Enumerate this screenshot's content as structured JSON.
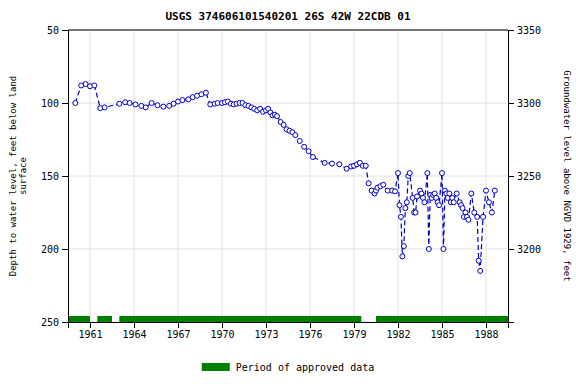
{
  "chart_data": {
    "type": "line",
    "title": "USGS 374606101540201 26S 42W 22CDB 01",
    "ylabel": "Depth to water level, feet below land\nsurface",
    "y2label": "Groundwater level above NGVD 1929, feet",
    "xlim": [
      1959.5,
      1989.5
    ],
    "xticks": [
      1961,
      1964,
      1967,
      1970,
      1973,
      1976,
      1979,
      1982,
      1985,
      1988
    ],
    "ylim": [
      250,
      50
    ],
    "yticks": [
      50,
      100,
      150,
      200,
      250
    ],
    "y2lim": [
      3150,
      3350
    ],
    "y2ticks": [
      3350,
      3300,
      3250,
      3200
    ],
    "grid": true,
    "legend": "bottom",
    "color": "#0000cc",
    "marker": "circle",
    "line_style": "dashed",
    "x": [
      1960.0,
      1960.4,
      1960.7,
      1961.0,
      1961.3,
      1961.7,
      1962.0,
      1963.0,
      1963.4,
      1963.7,
      1964.1,
      1964.5,
      1964.8,
      1965.2,
      1965.6,
      1966.0,
      1966.4,
      1966.7,
      1967.0,
      1967.3,
      1967.7,
      1968.0,
      1968.3,
      1968.6,
      1968.9,
      1969.2,
      1969.5,
      1969.7,
      1970.0,
      1970.2,
      1970.4,
      1970.6,
      1970.8,
      1971.0,
      1971.2,
      1971.4,
      1971.6,
      1971.8,
      1972.0,
      1972.2,
      1972.4,
      1972.6,
      1972.8,
      1973.0,
      1973.15,
      1973.3,
      1973.45,
      1973.6,
      1973.75,
      1974.0,
      1974.2,
      1974.4,
      1974.6,
      1974.8,
      1975.0,
      1975.3,
      1975.6,
      1975.9,
      1976.2,
      1977.0,
      1977.5,
      1978.0,
      1978.5,
      1978.8,
      1979.0,
      1979.2,
      1979.4,
      1979.6,
      1979.8,
      1980.0,
      1980.2,
      1980.4,
      1980.5,
      1980.6,
      1980.8,
      1981.0,
      1981.3,
      1981.6,
      1981.8,
      1982.0,
      1982.1,
      1982.2,
      1982.3,
      1982.4,
      1982.5,
      1982.6,
      1982.7,
      1982.8,
      1983.0,
      1983.1,
      1983.2,
      1983.3,
      1983.5,
      1983.6,
      1983.7,
      1983.8,
      1984.0,
      1984.1,
      1984.2,
      1984.3,
      1984.4,
      1984.5,
      1984.6,
      1984.7,
      1984.8,
      1985.0,
      1985.1,
      1985.2,
      1985.3,
      1985.4,
      1985.5,
      1985.6,
      1985.7,
      1985.8,
      1986.0,
      1986.2,
      1986.3,
      1986.4,
      1986.5,
      1986.6,
      1986.7,
      1986.8,
      1987.0,
      1987.2,
      1987.4,
      1987.5,
      1987.6,
      1987.8,
      1988.0,
      1988.2,
      1988.4,
      1988.6
    ],
    "values": [
      100.0,
      88.0,
      87.0,
      88.5,
      88.0,
      103.5,
      103.0,
      100.5,
      99.5,
      100.0,
      101.0,
      102.0,
      103.0,
      100.0,
      101.5,
      102.5,
      102.0,
      100.5,
      99.0,
      98.0,
      97.5,
      96.0,
      95.0,
      94.0,
      93.0,
      101.0,
      100.5,
      100.0,
      100.0,
      99.5,
      99.0,
      100.5,
      101.0,
      100.5,
      100.0,
      100.0,
      101.5,
      102.0,
      103.0,
      104.0,
      105.0,
      104.0,
      106.0,
      105.0,
      104.0,
      106.5,
      108.5,
      108.0,
      109.0,
      113.0,
      115.0,
      118.0,
      119.0,
      120.0,
      122.0,
      126.0,
      130.0,
      133.0,
      137.0,
      141.0,
      141.5,
      142.0,
      145.0,
      143.5,
      143.0,
      142.0,
      141.0,
      143.0,
      143.0,
      155.0,
      160.0,
      162.0,
      160.0,
      158.0,
      157.0,
      156.0,
      160.0,
      160.0,
      160.5,
      148.0,
      170.0,
      178.0,
      205.0,
      198.0,
      172.0,
      168.0,
      150.0,
      148.0,
      165.0,
      175.0,
      175.0,
      164.0,
      160.0,
      162.0,
      165.0,
      168.0,
      148.0,
      200.0,
      163.0,
      165.0,
      163.0,
      162.0,
      165.0,
      168.0,
      170.0,
      148.0,
      200.0,
      160.0,
      162.0,
      165.0,
      162.0,
      168.0,
      165.0,
      168.0,
      162.0,
      168.0,
      170.0,
      172.0,
      178.0,
      175.0,
      178.0,
      180.0,
      162.0,
      175.0,
      178.0,
      208.0,
      215.0,
      178.0,
      160.0,
      168.0,
      175.0,
      160.0
    ],
    "approved_periods": {
      "name": "Period of approved data",
      "color": "#008000",
      "ranges": [
        [
          1959.5,
          1961.0
        ],
        [
          1961.5,
          1962.5
        ],
        [
          1963.0,
          1979.5
        ],
        [
          1980.5,
          1989.5
        ]
      ]
    }
  }
}
